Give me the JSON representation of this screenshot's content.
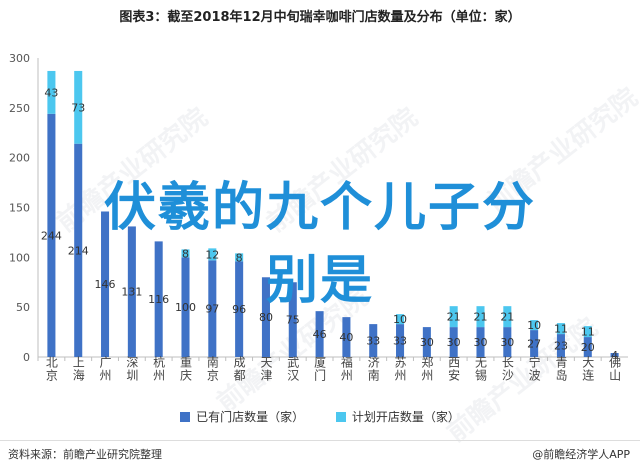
{
  "page": {
    "title": "图表3：截至2018年12月中旬瑞幸咖啡门店数量及分布（单位：家）",
    "overlay_line1": "伏羲的九个儿子分",
    "overlay_line2": "别是",
    "watermark_text": "前瞻产业研究院",
    "source": "资料来源：前瞻产业研究院整理",
    "brand": "@前瞻经济学人APP"
  },
  "colors": {
    "existing": "#3f72c6",
    "planned": "#4cc7ef",
    "axis": "#bfbfbf",
    "overlay": "#1f8fd8"
  },
  "chart_data": {
    "type": "bar",
    "stacked": true,
    "categories": [
      "北京",
      "上海",
      "广州",
      "深圳",
      "杭州",
      "重庆",
      "南京",
      "成都",
      "天津",
      "武汉",
      "厦门",
      "福州",
      "济南",
      "苏州",
      "郑州",
      "西安",
      "无锡",
      "长沙",
      "宁波",
      "青岛",
      "大连",
      "佛山"
    ],
    "series": [
      {
        "name": "已有门店数量（家）",
        "color": "#3f72c6",
        "values": [
          244,
          214,
          146,
          131,
          116,
          100,
          97,
          96,
          80,
          75,
          46,
          40,
          33,
          33,
          30,
          30,
          30,
          30,
          27,
          23,
          20,
          4
        ]
      },
      {
        "name": "计划开店数量（家）",
        "color": "#4cc7ef",
        "values": [
          43,
          73,
          0,
          0,
          0,
          8,
          12,
          8,
          0,
          0,
          0,
          0,
          0,
          10,
          0,
          21,
          21,
          21,
          10,
          11,
          11,
          0
        ]
      }
    ],
    "ylim": [
      0,
      300
    ],
    "yticks": [
      0,
      50,
      100,
      150,
      200,
      250,
      300
    ],
    "legend_position": "bottom",
    "grid": false
  }
}
